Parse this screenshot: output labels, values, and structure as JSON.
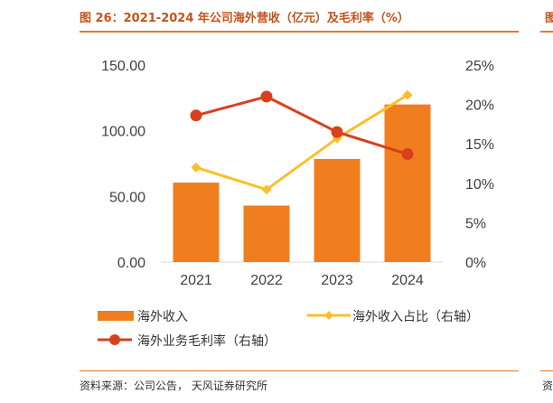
{
  "title": "图 26：2021-2024 年公司海外营收（亿元）及毛利率（%）",
  "source": "资料来源：公司公告，   天风证券研究所",
  "cut_title": "图",
  "cut_source": "资",
  "colors": {
    "bar": "#f07e1e",
    "share_line": "#fbbf2b",
    "margin_line": "#d8411e",
    "rule": "#e8762b",
    "title": "#c5521a"
  },
  "chart_data": {
    "type": "bar",
    "categories": [
      "2021",
      "2022",
      "2023",
      "2024"
    ],
    "series": [
      {
        "name": "海外收入",
        "type": "bar",
        "axis": "left",
        "values": [
          60.5,
          43.0,
          78.5,
          120.0
        ]
      },
      {
        "name": "海外收入占比（右轴）",
        "type": "line",
        "marker": "diamond",
        "axis": "right",
        "values": [
          12.0,
          9.2,
          15.7,
          21.2
        ]
      },
      {
        "name": "海外业务毛利率（右轴）",
        "type": "line",
        "marker": "circle",
        "axis": "right",
        "values": [
          18.6,
          21.0,
          16.5,
          13.7
        ]
      }
    ],
    "left_axis": {
      "min": 0,
      "max": 150,
      "ticks": [
        "0.00",
        "50.00",
        "100.00",
        "150.00"
      ]
    },
    "right_axis": {
      "min": 0,
      "max": 25,
      "ticks": [
        "0%",
        "5%",
        "10%",
        "15%",
        "20%",
        "25%"
      ]
    },
    "grid": false,
    "legend_position": "bottom"
  }
}
